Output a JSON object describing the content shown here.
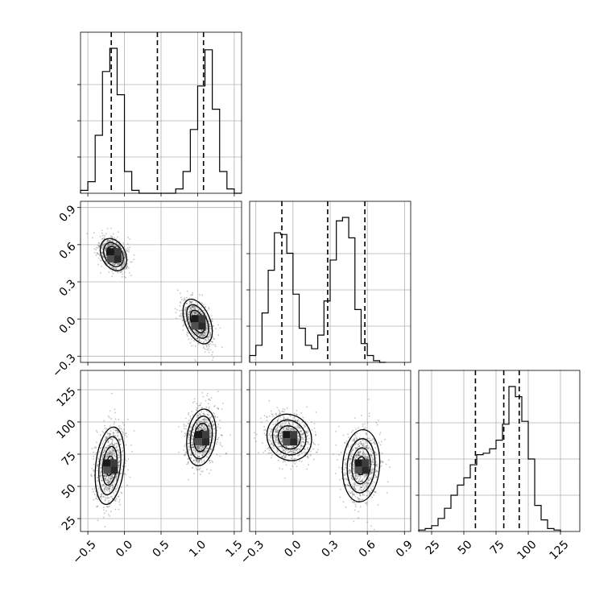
{
  "chart_data": {
    "type": "corner",
    "grid": true,
    "parameters": [
      {
        "index": 0,
        "range": [
          -0.6,
          1.6
        ],
        "ticks": [
          -0.5,
          0.0,
          0.5,
          1.0,
          1.5
        ],
        "tick_labels": [
          "−0.5",
          "0.0",
          "0.5",
          "1.0",
          "1.5"
        ]
      },
      {
        "index": 1,
        "range": [
          -0.35,
          0.95
        ],
        "ticks": [
          -0.3,
          0.0,
          0.3,
          0.6,
          0.9
        ],
        "tick_labels": [
          "−0.3",
          "0.0",
          "0.3",
          "0.6",
          "0.9"
        ]
      },
      {
        "index": 2,
        "range": [
          15,
          140
        ],
        "ticks": [
          25,
          50,
          75,
          100,
          125
        ],
        "tick_labels": [
          "25",
          "50",
          "75",
          "100",
          "125"
        ]
      }
    ],
    "histograms": [
      {
        "param": 0,
        "bins": [
          -0.6,
          -0.5,
          -0.4,
          -0.3,
          -0.2,
          -0.1,
          0.0,
          0.1,
          0.2,
          0.3,
          0.4,
          0.5,
          0.6,
          0.7,
          0.8,
          0.9,
          1.0,
          1.1,
          1.2,
          1.3,
          1.4,
          1.5,
          1.6
        ],
        "counts": [
          2,
          8,
          40,
          84,
          100,
          68,
          15,
          2,
          0,
          0,
          0,
          0,
          0,
          3,
          15,
          44,
          74,
          99,
          58,
          15,
          3,
          0
        ],
        "quantiles": [
          -0.18,
          0.45,
          1.08
        ]
      },
      {
        "param": 1,
        "bins": [
          -0.35,
          -0.3,
          -0.25,
          -0.2,
          -0.15,
          -0.1,
          -0.05,
          0.0,
          0.05,
          0.1,
          0.15,
          0.2,
          0.25,
          0.3,
          0.35,
          0.4,
          0.45,
          0.5,
          0.55,
          0.6,
          0.65,
          0.7,
          0.75
        ],
        "counts": [
          4,
          10,
          29,
          54,
          76,
          75,
          64,
          40,
          20,
          10,
          8,
          16,
          36,
          60,
          83,
          85,
          73,
          31,
          11,
          4,
          1,
          0
        ],
        "quantiles": [
          -0.09,
          0.28,
          0.58
        ]
      },
      {
        "param": 2,
        "bins": [
          15,
          20,
          25,
          30,
          35,
          40,
          45,
          50,
          55,
          60,
          65,
          70,
          75,
          80,
          85,
          90,
          95,
          100,
          105,
          110,
          115,
          120,
          125
        ],
        "counts": [
          1,
          2,
          4,
          9,
          16,
          25,
          32,
          37,
          46,
          53,
          54,
          57,
          63,
          74,
          100,
          93,
          76,
          50,
          18,
          8,
          2,
          1
        ],
        "quantiles": [
          59,
          81,
          93
        ]
      }
    ],
    "scatter_panels": [
      {
        "x_param": 0,
        "y_param": 1,
        "clusters": [
          {
            "center": [
              -0.15,
              0.52
            ],
            "sd": [
              0.09,
              0.065
            ],
            "rho": -0.3
          },
          {
            "center": [
              1.0,
              -0.02
            ],
            "sd": [
              0.1,
              0.09
            ],
            "rho": -0.45
          }
        ]
      },
      {
        "x_param": 0,
        "y_param": 2,
        "clusters": [
          {
            "center": [
              -0.2,
              66
            ],
            "sd": [
              0.1,
              15
            ],
            "rho": 0.25
          },
          {
            "center": [
              1.05,
              88
            ],
            "sd": [
              0.1,
              11
            ],
            "rho": 0.2
          }
        ]
      },
      {
        "x_param": 1,
        "y_param": 2,
        "clusters": [
          {
            "center": [
              -0.03,
              88
            ],
            "sd": [
              0.09,
              9
            ],
            "rho": -0.1
          },
          {
            "center": [
              0.55,
              66
            ],
            "sd": [
              0.075,
              14
            ],
            "rho": 0.1
          }
        ]
      }
    ]
  }
}
